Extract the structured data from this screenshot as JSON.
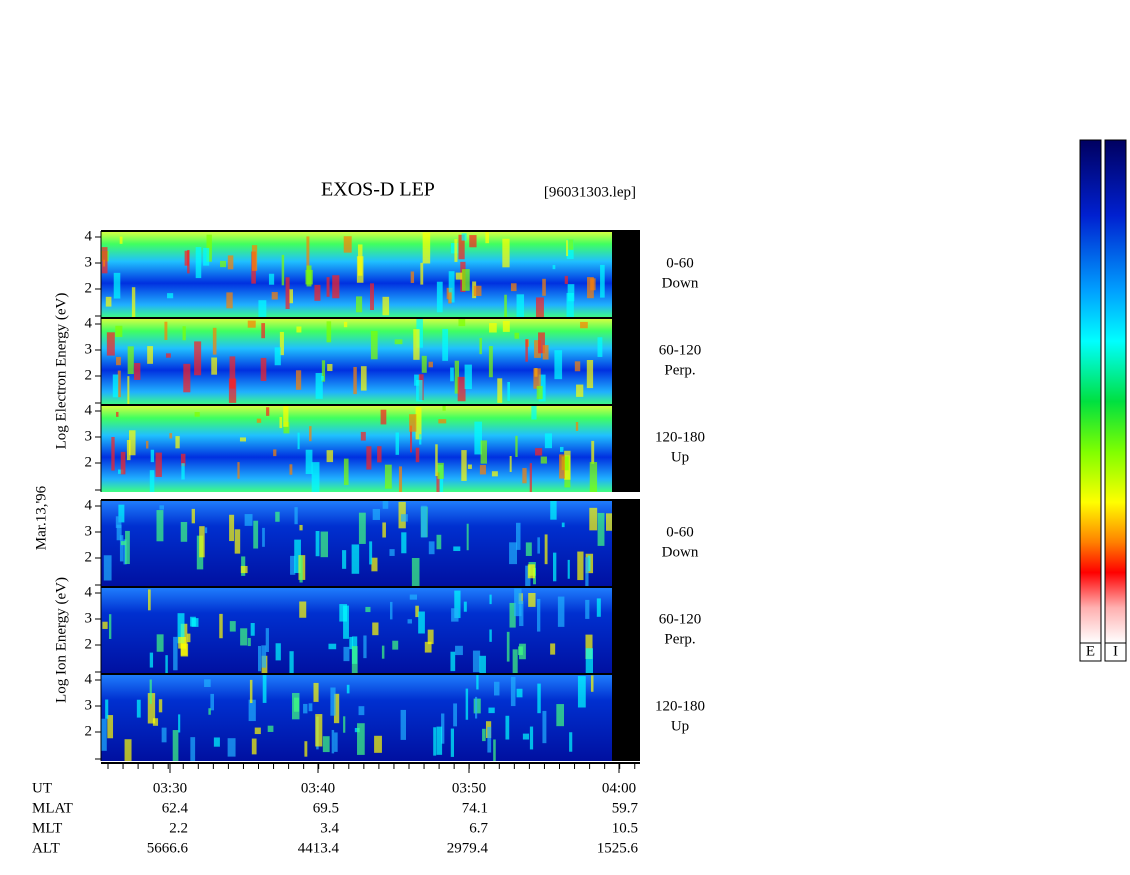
{
  "header": {
    "title": "EXOS-D LEP",
    "file": "[96031303.lep]"
  },
  "date": "Mar.13,'96",
  "groups": [
    {
      "axis_label": "Log Electron Energy (eV)",
      "species": "electron",
      "panels": [
        {
          "label": "0-60",
          "sub": "Down",
          "yticks": [
            2,
            3,
            4
          ]
        },
        {
          "label": "60-120",
          "sub": "Perp.",
          "yticks": [
            2,
            3,
            4
          ]
        },
        {
          "label": "120-180",
          "sub": "Up",
          "yticks": [
            2,
            3,
            4
          ]
        }
      ]
    },
    {
      "axis_label": "Log Ion Energy (eV)",
      "species": "ion",
      "panels": [
        {
          "label": "0-60",
          "sub": "Down",
          "yticks": [
            2,
            3,
            4
          ]
        },
        {
          "label": "60-120",
          "sub": "Perp.",
          "yticks": [
            2,
            3,
            4
          ]
        },
        {
          "label": "120-180",
          "sub": "Up",
          "yticks": [
            2,
            3,
            4
          ]
        }
      ]
    }
  ],
  "ephemeris": {
    "row_labels": [
      "UT",
      "MLAT",
      "MLT",
      "ALT"
    ],
    "columns": [
      [
        "03:30",
        "62.4",
        "2.2",
        "5666.6"
      ],
      [
        "03:40",
        "69.5",
        "3.4",
        "4413.4"
      ],
      [
        "03:50",
        "74.1",
        "6.7",
        "2979.4"
      ],
      [
        "04:00",
        "59.7",
        "10.5",
        "1525.6"
      ]
    ]
  },
  "colorbars": [
    "E",
    "I"
  ]
}
